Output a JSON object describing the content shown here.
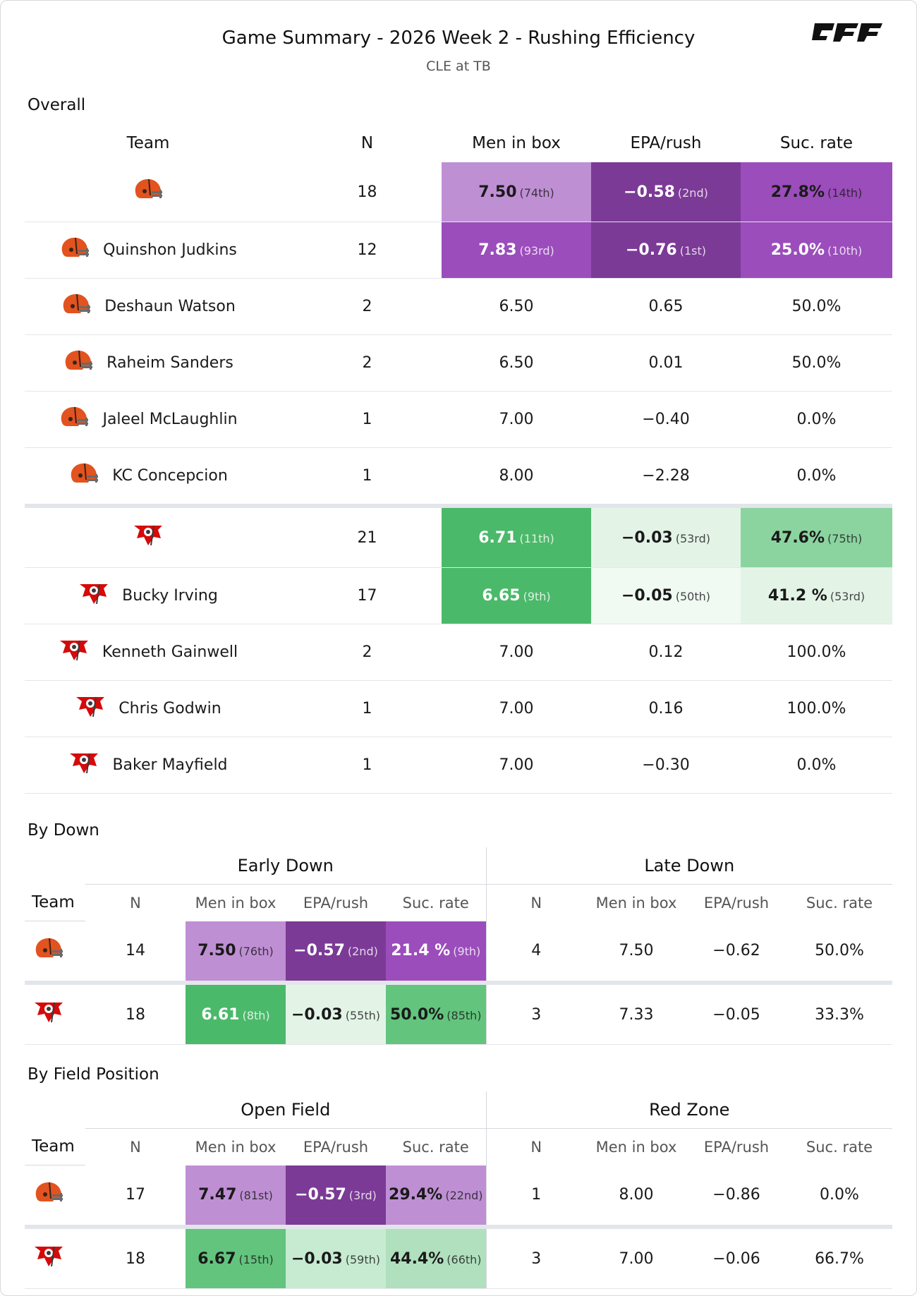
{
  "header": {
    "title": "Game Summary - 2026 Week 2 - Rushing Efficiency",
    "subtitle": "CLE at TB",
    "logo_text": "PFF"
  },
  "colors": {
    "purple_dark": "#7b3a96",
    "purple_mid": "#9b4dbb",
    "purple_light": "#bf8fd4",
    "green_dark": "#4bb96a",
    "green_mid": "#8bd4a0",
    "green_light": "#e3f4e7",
    "green_pale": "#f0f9f2"
  },
  "overall": {
    "section_title": "Overall",
    "columns": [
      "Team",
      "N",
      "Men in box",
      "EPA/rush",
      "Suc. rate"
    ],
    "rows": [
      {
        "team": "CLE",
        "name": "",
        "n": "18",
        "box": "7.50",
        "box_rank": "(74th)",
        "epa": "−0.58",
        "epa_rank": "(2nd)",
        "suc": "27.8%",
        "suc_rank": "(14th)"
      },
      {
        "team": "CLE",
        "name": "Quinshon Judkins",
        "n": "12",
        "box": "7.83",
        "box_rank": "(93rd)",
        "epa": "−0.76",
        "epa_rank": "(1st)",
        "suc": "25.0%",
        "suc_rank": "(10th)"
      },
      {
        "team": "CLE",
        "name": "Deshaun Watson",
        "n": "2",
        "box": "6.50",
        "epa": "0.65",
        "suc": "50.0%"
      },
      {
        "team": "CLE",
        "name": "Raheim Sanders",
        "n": "2",
        "box": "6.50",
        "epa": "0.01",
        "suc": "50.0%"
      },
      {
        "team": "CLE",
        "name": "Jaleel McLaughlin",
        "n": "1",
        "box": "7.00",
        "epa": "−0.40",
        "suc": "0.0%"
      },
      {
        "team": "CLE",
        "name": "KC Concepcion",
        "n": "1",
        "box": "8.00",
        "epa": "−2.28",
        "suc": "0.0%"
      },
      {
        "team": "TB",
        "name": "",
        "n": "21",
        "box": "6.71",
        "box_rank": "(11th)",
        "epa": "−0.03",
        "epa_rank": "(53rd)",
        "suc": "47.6%",
        "suc_rank": "(75th)"
      },
      {
        "team": "TB",
        "name": "Bucky Irving",
        "n": "17",
        "box": "6.65",
        "box_rank": "(9th)",
        "epa": "−0.05",
        "epa_rank": "(50th)",
        "suc": "41.2 %",
        "suc_rank": "(53rd)"
      },
      {
        "team": "TB",
        "name": "Kenneth Gainwell",
        "n": "2",
        "box": "7.00",
        "epa": "0.12",
        "suc": "100.0%"
      },
      {
        "team": "TB",
        "name": "Chris Godwin",
        "n": "1",
        "box": "7.00",
        "epa": "0.16",
        "suc": "100.0%"
      },
      {
        "team": "TB",
        "name": "Baker Mayfield",
        "n": "1",
        "box": "7.00",
        "epa": "−0.30",
        "suc": "0.0%"
      }
    ]
  },
  "by_down": {
    "section_title": "By Down",
    "group_left": "Early Down",
    "group_right": "Late Down",
    "team_header": "Team",
    "columns": [
      "N",
      "Men in box",
      "EPA/rush",
      "Suc. rate"
    ],
    "rows": [
      {
        "team": "CLE",
        "n": "14",
        "box": "7.50",
        "box_rank": "(76th)",
        "epa": "−0.57",
        "epa_rank": "(2nd)",
        "suc": "21.4 %",
        "suc_rank": "(9th)",
        "late_n": "4",
        "late_box": "7.50",
        "late_epa": "−0.62",
        "late_suc": "50.0%"
      },
      {
        "team": "TB",
        "n": "18",
        "box": "6.61",
        "box_rank": "(8th)",
        "epa": "−0.03",
        "epa_rank": "(55th)",
        "suc": "50.0%",
        "suc_rank": "(85th)",
        "late_n": "3",
        "late_box": "7.33",
        "late_epa": "−0.05",
        "late_suc": "33.3%"
      }
    ]
  },
  "by_field": {
    "section_title": "By Field Position",
    "group_left": "Open Field",
    "group_right": "Red Zone",
    "team_header": "Team",
    "columns": [
      "N",
      "Men in box",
      "EPA/rush",
      "Suc. rate"
    ],
    "rows": [
      {
        "team": "CLE",
        "n": "17",
        "box": "7.47",
        "box_rank": "(81st)",
        "epa": "−0.57",
        "epa_rank": "(3rd)",
        "suc": "29.4%",
        "suc_rank": "(22nd)",
        "late_n": "1",
        "late_box": "8.00",
        "late_epa": "−0.86",
        "late_suc": "0.0%"
      },
      {
        "team": "TB",
        "n": "18",
        "box": "6.67",
        "box_rank": "(15th)",
        "epa": "−0.03",
        "epa_rank": "(59th)",
        "suc": "44.4%",
        "suc_rank": "(66th)",
        "late_n": "3",
        "late_box": "7.00",
        "late_epa": "−0.06",
        "late_suc": "66.7%"
      }
    ]
  }
}
